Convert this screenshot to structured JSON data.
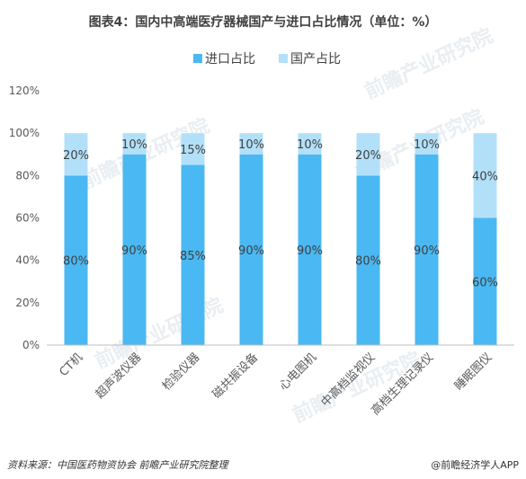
{
  "chart_data": {
    "type": "bar",
    "stacked": true,
    "title": "图表4：国内中高端医疗器械国产与进口占比情况（单位：%）",
    "categories": [
      "CT机",
      "超声波仪器",
      "检验仪器",
      "磁共振设备",
      "心电图机",
      "中高档监视仪",
      "高档生理记录仪",
      "睡眠图仪"
    ],
    "series": [
      {
        "name": "进口占比",
        "color": "#4ab8f2",
        "values": [
          80,
          90,
          85,
          90,
          90,
          80,
          90,
          60
        ],
        "labels": [
          "80%",
          "90%",
          "85%",
          "90%",
          "90%",
          "80%",
          "90%",
          "60%"
        ]
      },
      {
        "name": "国产占比",
        "color": "#b3e0f9",
        "values": [
          20,
          10,
          15,
          10,
          10,
          20,
          10,
          40
        ],
        "labels": [
          "20%",
          "10%",
          "15%",
          "10%",
          "10%",
          "20%",
          "10%",
          "40%"
        ]
      }
    ],
    "ylim": [
      0,
      120
    ],
    "yticks": [
      "0%",
      "20%",
      "40%",
      "60%",
      "80%",
      "100%",
      "120%"
    ],
    "legend_position": "top",
    "grid": false
  },
  "footer": {
    "source": "资料来源：中国医药物资协会 前瞻产业研究院整理",
    "brand": "@前瞻经济学人APP"
  },
  "watermark": {
    "text": "前瞻产业研究院"
  }
}
